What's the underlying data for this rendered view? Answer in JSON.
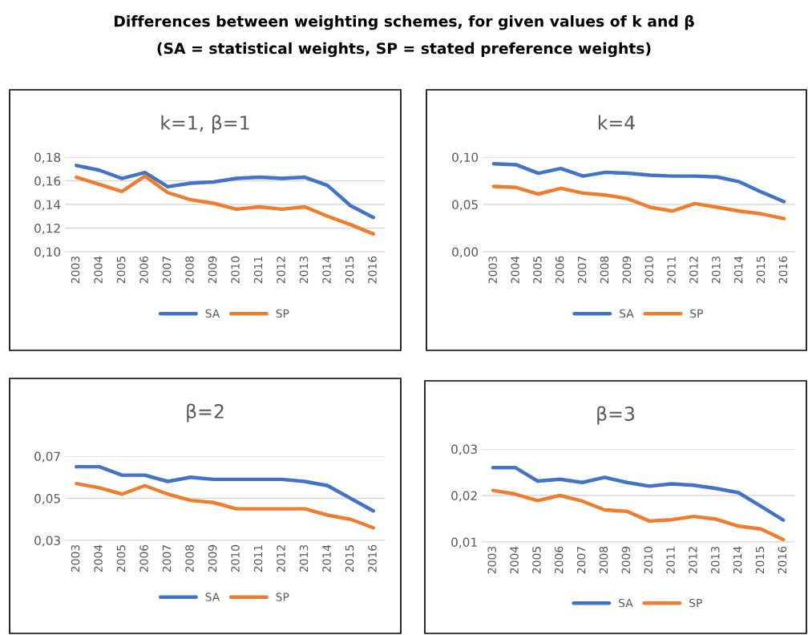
{
  "chart_data": [
    {
      "type": "line",
      "title": "k=1, β=1",
      "annotations": [
        "Differences between weighting schemes, for given values of k and β",
        "(SA = statistical weights, SP = stated preference weights)"
      ],
      "categories": [
        "2003",
        "2004",
        "2005",
        "2006",
        "2007",
        "2008",
        "2009",
        "2010",
        "2011",
        "2012",
        "2013",
        "2014",
        "2015",
        "2016"
      ],
      "series": [
        {
          "name": "SA",
          "color": "#4472c4",
          "values": [
            0.173,
            0.169,
            0.162,
            0.167,
            0.155,
            0.158,
            0.159,
            0.162,
            0.163,
            0.162,
            0.163,
            0.156,
            0.139,
            0.129
          ]
        },
        {
          "name": "SP",
          "color": "#ed7d31",
          "values": [
            0.163,
            0.157,
            0.151,
            0.164,
            0.15,
            0.144,
            0.141,
            0.136,
            0.138,
            0.136,
            0.138,
            0.13,
            0.123,
            0.115
          ]
        }
      ],
      "ylim": [
        0.1,
        0.18
      ],
      "yticks": [
        {
          "value": 0.1,
          "label": "0,10"
        },
        {
          "value": 0.12,
          "label": "0,12"
        },
        {
          "value": 0.14,
          "label": "0,14"
        },
        {
          "value": 0.16,
          "label": "0,16"
        },
        {
          "value": 0.18,
          "label": "0,18"
        }
      ],
      "grid": "y",
      "legend": "bottom",
      "marker": "none",
      "line_style": "solid"
    },
    {
      "type": "line",
      "title": "k=4",
      "categories": [
        "2003",
        "2004",
        "2005",
        "2006",
        "2007",
        "2008",
        "2009",
        "2010",
        "2011",
        "2012",
        "2013",
        "2014",
        "2015",
        "2016"
      ],
      "series": [
        {
          "name": "SA",
          "color": "#4472c4",
          "values": [
            0.093,
            0.092,
            0.083,
            0.088,
            0.08,
            0.084,
            0.083,
            0.081,
            0.08,
            0.08,
            0.079,
            0.074,
            0.063,
            0.053
          ]
        },
        {
          "name": "SP",
          "color": "#ed7d31",
          "values": [
            0.069,
            0.068,
            0.061,
            0.067,
            0.062,
            0.06,
            0.056,
            0.047,
            0.043,
            0.051,
            0.047,
            0.043,
            0.04,
            0.035
          ]
        }
      ],
      "ylim": [
        0.0,
        0.1
      ],
      "yticks": [
        {
          "value": 0.0,
          "label": "0,00"
        },
        {
          "value": 0.05,
          "label": "0,05"
        },
        {
          "value": 0.1,
          "label": "0,10"
        }
      ],
      "grid": "y",
      "legend": "bottom",
      "marker": "none",
      "line_style": "solid"
    },
    {
      "type": "line",
      "title": "β=2",
      "categories": [
        "2003",
        "2004",
        "2005",
        "2006",
        "2007",
        "2008",
        "2009",
        "2010",
        "2011",
        "2012",
        "2013",
        "2014",
        "2015",
        "2016"
      ],
      "series": [
        {
          "name": "SA",
          "color": "#4472c4",
          "values": [
            0.065,
            0.065,
            0.061,
            0.061,
            0.058,
            0.06,
            0.059,
            0.059,
            0.059,
            0.059,
            0.058,
            0.056,
            0.05,
            0.044
          ]
        },
        {
          "name": "SP",
          "color": "#ed7d31",
          "values": [
            0.057,
            0.055,
            0.052,
            0.056,
            0.052,
            0.049,
            0.048,
            0.045,
            0.045,
            0.045,
            0.045,
            0.042,
            0.04,
            0.036
          ]
        }
      ],
      "ylim": [
        0.03,
        0.07
      ],
      "yticks": [
        {
          "value": 0.03,
          "label": "0,03"
        },
        {
          "value": 0.05,
          "label": "0,05"
        },
        {
          "value": 0.07,
          "label": "0,07"
        }
      ],
      "grid": "y",
      "legend": "bottom",
      "marker": "none",
      "line_style": "solid"
    },
    {
      "type": "line",
      "title": "β=3",
      "categories": [
        "2003",
        "2004",
        "2005",
        "2006",
        "2007",
        "2008",
        "2009",
        "2010",
        "2011",
        "2012",
        "2013",
        "2014",
        "2015",
        "2016"
      ],
      "series": [
        {
          "name": "SA",
          "color": "#4472c4",
          "values": [
            0.026,
            0.026,
            0.0231,
            0.0235,
            0.0228,
            0.0239,
            0.0228,
            0.022,
            0.0225,
            0.0222,
            0.0215,
            0.0206,
            0.0177,
            0.0147
          ]
        },
        {
          "name": "SP",
          "color": "#ed7d31",
          "values": [
            0.0211,
            0.0203,
            0.0189,
            0.02,
            0.0188,
            0.0169,
            0.0166,
            0.0145,
            0.0148,
            0.0155,
            0.0149,
            0.0134,
            0.0128,
            0.0105
          ]
        }
      ],
      "ylim": [
        0.01,
        0.03
      ],
      "yticks": [
        {
          "value": 0.01,
          "label": "0,01"
        },
        {
          "value": 0.02,
          "label": "0,02"
        },
        {
          "value": 0.03,
          "label": "0,03"
        }
      ],
      "grid": "y",
      "legend": "bottom",
      "marker": "none",
      "line_style": "solid"
    }
  ]
}
